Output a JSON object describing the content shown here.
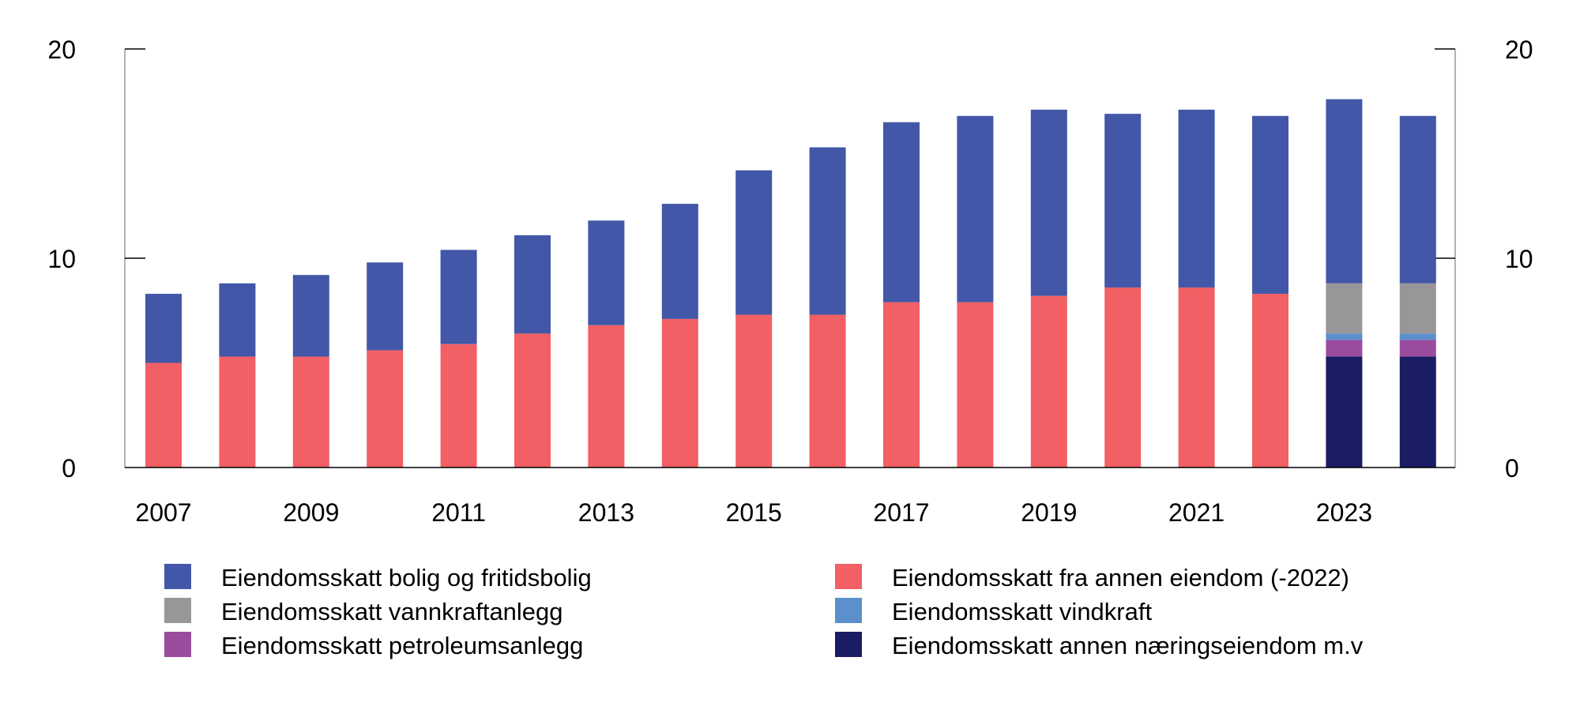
{
  "chart_data": {
    "type": "bar",
    "stacked": true,
    "title": "",
    "xlabel": "",
    "ylabel": "",
    "ylim": [
      0,
      20
    ],
    "yticks": [
      0,
      10,
      20
    ],
    "secondary_yaxis": true,
    "grid": false,
    "legend_placement": "bottom",
    "categories": [
      "2007",
      "2008",
      "2009",
      "2010",
      "2011",
      "2012",
      "2013",
      "2014",
      "2015",
      "2016",
      "2017",
      "2018",
      "2019",
      "2020",
      "2021",
      "2022",
      "2023",
      "2024"
    ],
    "xtick_labels": [
      "2007",
      "2009",
      "2011",
      "2013",
      "2015",
      "2017",
      "2019",
      "2021",
      "2023"
    ],
    "series": [
      {
        "name": "Eiendomsskatt fra annen eiendom (-2022)",
        "color": "#f25f64",
        "values": [
          5.0,
          5.3,
          5.3,
          5.6,
          5.9,
          6.4,
          6.8,
          7.1,
          7.3,
          7.3,
          7.9,
          7.9,
          8.2,
          8.6,
          8.6,
          8.3,
          0,
          0
        ]
      },
      {
        "name": "Eiendomsskatt annen næringseiendom m.v",
        "color": "#1a1d63",
        "values": [
          0,
          0,
          0,
          0,
          0,
          0,
          0,
          0,
          0,
          0,
          0,
          0,
          0,
          0,
          0,
          0,
          5.3,
          5.3
        ]
      },
      {
        "name": "Eiendomsskatt petroleumsanlegg",
        "color": "#9a4c9e",
        "values": [
          0,
          0,
          0,
          0,
          0,
          0,
          0,
          0,
          0,
          0,
          0,
          0,
          0,
          0,
          0,
          0,
          0.8,
          0.8
        ]
      },
      {
        "name": "Eiendomsskatt vindkraft",
        "color": "#5b90cc",
        "values": [
          0,
          0,
          0,
          0,
          0,
          0,
          0,
          0,
          0,
          0,
          0,
          0,
          0,
          0,
          0,
          0,
          0.3,
          0.3
        ]
      },
      {
        "name": "Eiendomsskatt vannkraftanlegg",
        "color": "#989698",
        "values": [
          0,
          0,
          0,
          0,
          0,
          0,
          0,
          0,
          0,
          0,
          0,
          0,
          0,
          0,
          0,
          0,
          2.4,
          2.4
        ]
      },
      {
        "name": "Eiendomsskatt bolig og fritidsbolig",
        "color": "#4257a7",
        "values": [
          3.3,
          3.5,
          3.9,
          4.2,
          4.5,
          4.7,
          5.0,
          5.5,
          6.9,
          8.0,
          8.6,
          8.9,
          8.9,
          8.3,
          8.5,
          8.5,
          8.8,
          8.0
        ]
      }
    ],
    "legend_order": [
      "Eiendomsskatt bolig og fritidsbolig",
      "Eiendomsskatt fra annen eiendom (-2022)",
      "Eiendomsskatt vannkraftanlegg",
      "Eiendomsskatt vindkraft",
      "Eiendomsskatt petroleumsanlegg",
      "Eiendomsskatt annen næringseiendom m.v"
    ]
  }
}
